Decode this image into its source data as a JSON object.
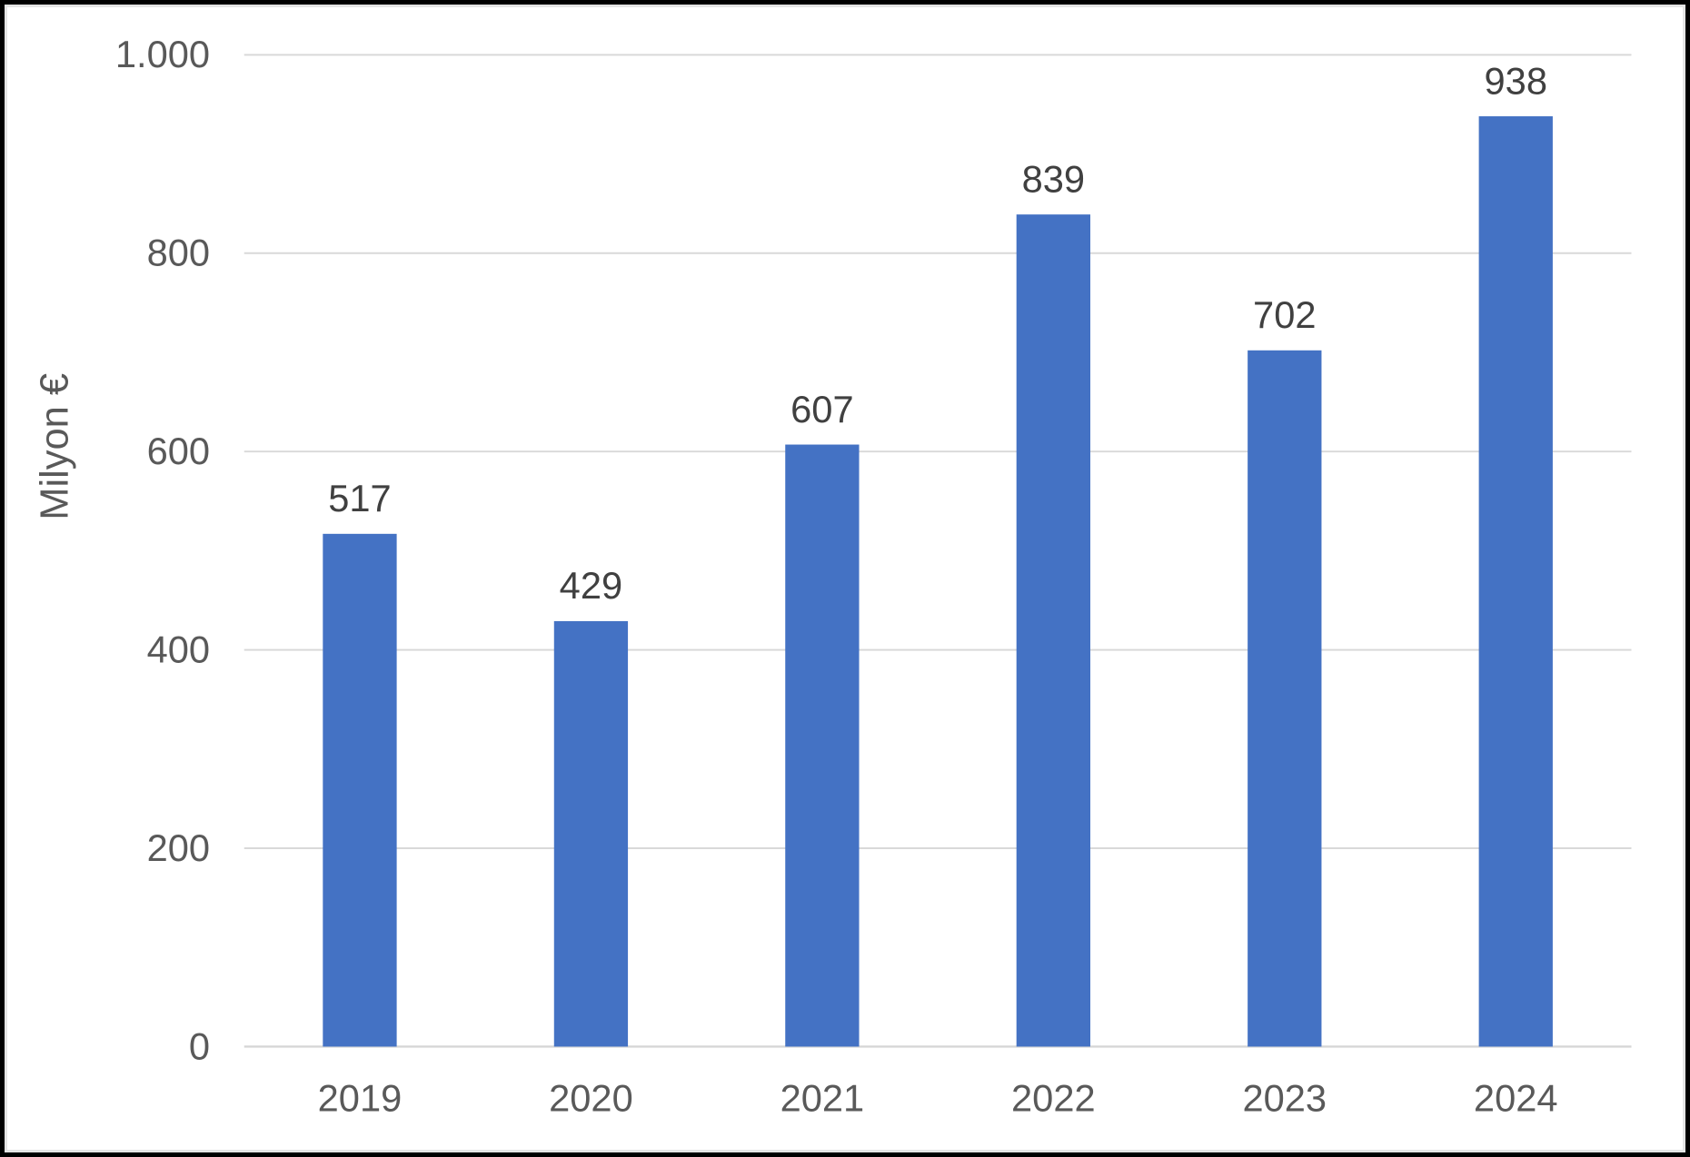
{
  "chart_data": {
    "type": "bar",
    "title": "",
    "categories": [
      "2019",
      "2020",
      "2021",
      "2022",
      "2023",
      "2024"
    ],
    "values": [
      517,
      429,
      607,
      839,
      702,
      938
    ],
    "data_labels": [
      "517",
      "429",
      "607",
      "839",
      "702",
      "938"
    ],
    "xlabel": "",
    "ylabel": "Milyon €",
    "ylim": [
      0,
      1000
    ],
    "ytick_step": 200,
    "ytick_values": [
      0,
      200,
      400,
      600,
      800,
      1000
    ],
    "ytick_labels": [
      "0",
      "200",
      "400",
      "600",
      "800",
      "1.000"
    ],
    "grid": true,
    "legend": "none",
    "colors": {
      "bar": "#4472C4",
      "gridline": "#D9D9D9",
      "axis_line": "#D6D6D6",
      "axis_text": "#595959",
      "data_label": "#404040",
      "background": "#FFFFFF",
      "chart_border": "#E4E4E4",
      "frame_border": "#000000"
    }
  }
}
